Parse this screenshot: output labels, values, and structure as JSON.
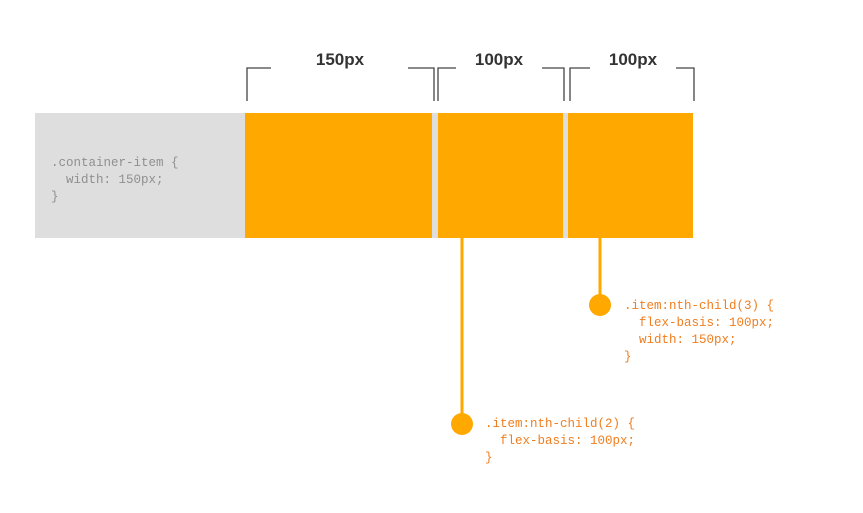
{
  "dimensions": [
    {
      "label": "150px"
    },
    {
      "label": "100px"
    },
    {
      "label": "100px"
    }
  ],
  "container_code": [
    ".container-item {",
    "  width: 150px;",
    "}"
  ],
  "callouts": [
    {
      "lines": [
        ".item:nth-child(3) {",
        "  flex-basis: 100px;",
        "  width: 150px;",
        "}"
      ]
    },
    {
      "lines": [
        ".item:nth-child(2) {",
        "  flex-basis: 100px;",
        "}"
      ]
    }
  ],
  "colors": {
    "item": "#ffa800",
    "container": "#dedede",
    "callout_text": "#f07d1e",
    "container_text": "#8f8f8f",
    "bracket": "#444444"
  }
}
